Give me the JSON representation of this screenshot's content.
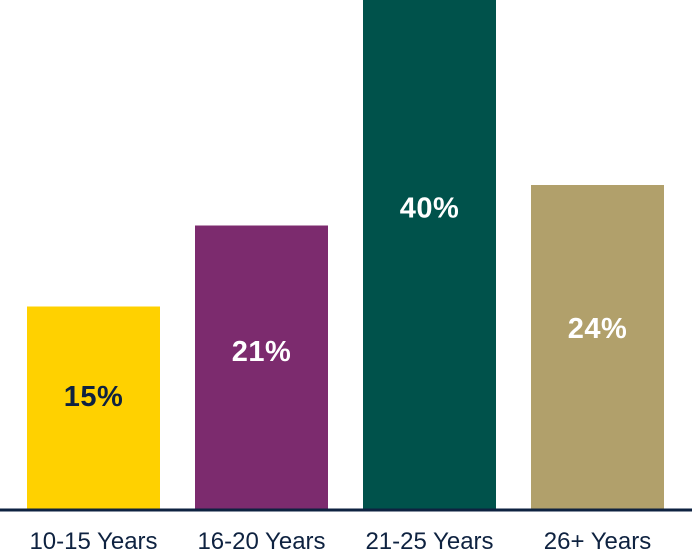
{
  "chart_data": {
    "type": "bar",
    "title": "",
    "xlabel": "",
    "ylabel": "",
    "categories": [
      "10-15 Years",
      "16-20 Years",
      "21-25 Years",
      "26+ Years"
    ],
    "values": [
      15,
      21,
      40,
      24
    ],
    "data_labels": [
      "15%",
      "21%",
      "40%",
      "24%"
    ],
    "colors": [
      "#ffd100",
      "#7c2b6e",
      "#00524b",
      "#b1a06b"
    ],
    "label_colors": [
      "#0e2240",
      "#ffffff",
      "#ffffff",
      "#ffffff"
    ],
    "axis_color": "#0e2240",
    "grid": false,
    "legend": "none"
  }
}
